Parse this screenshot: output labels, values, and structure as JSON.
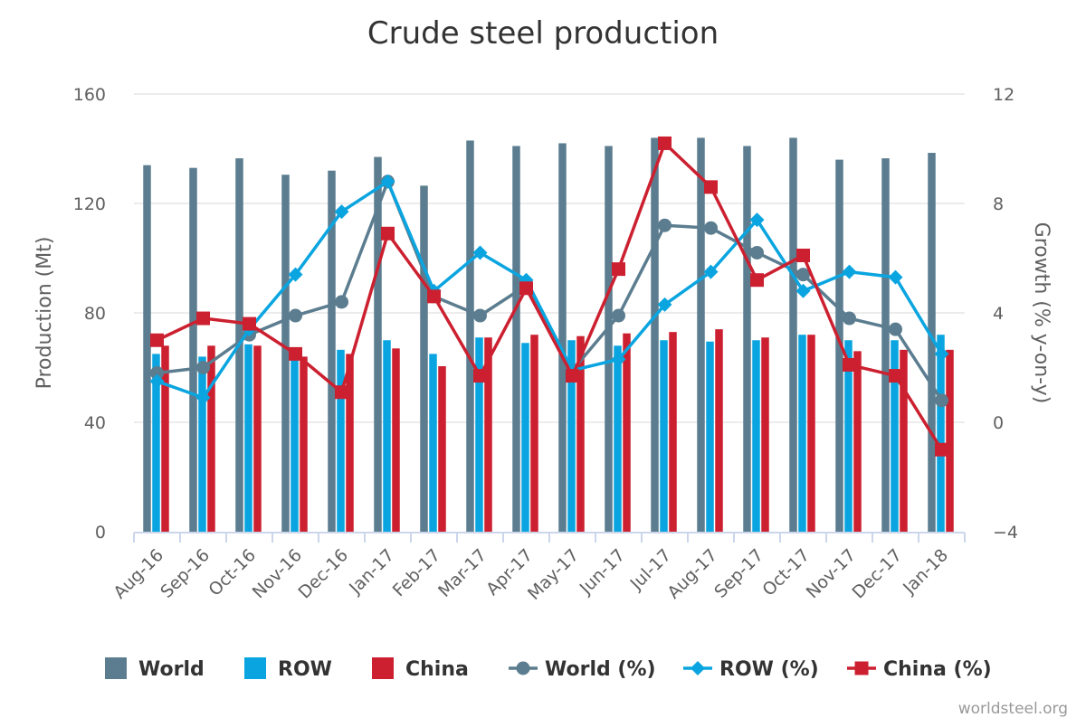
{
  "chart_data": {
    "type": "bar",
    "title": "Crude steel production",
    "ylabel": "Production (Mt)",
    "y2label": "Growth (% y-on-y)",
    "ylim": [
      0,
      160
    ],
    "y2lim": [
      -4,
      12
    ],
    "yticks": [
      "0",
      "40",
      "80",
      "120",
      "160"
    ],
    "y2ticks": [
      "−4",
      "0",
      "4",
      "8",
      "12"
    ],
    "grid": true,
    "legend_position": "bottom",
    "categories": [
      "Aug-16",
      "Sep-16",
      "Oct-16",
      "Nov-16",
      "Dec-16",
      "Jan-17",
      "Feb-17",
      "Mar-17",
      "Apr-17",
      "May-17",
      "Jun-17",
      "Jul-17",
      "Aug-17",
      "Sep-17",
      "Oct-17",
      "Nov-17",
      "Dec-17",
      "Jan-18"
    ],
    "bar_series": [
      {
        "name": "World",
        "color": "#5b7d8f",
        "values": [
          134,
          133,
          136.5,
          130.5,
          132,
          137,
          126.5,
          143,
          141,
          142,
          141,
          144,
          144,
          141,
          144,
          136,
          136.5,
          138.5
        ]
      },
      {
        "name": "ROW",
        "color": "#0aa5e0",
        "values": [
          65,
          64,
          68.5,
          65,
          66.5,
          70,
          65,
          71,
          69,
          70,
          68,
          70,
          69.5,
          70,
          72,
          70,
          70,
          72
        ]
      },
      {
        "name": "China",
        "color": "#cc2030",
        "values": [
          68,
          68,
          68,
          64,
          65,
          67,
          60.5,
          71,
          72,
          71.5,
          72.5,
          73,
          74,
          71,
          72,
          66,
          66.5,
          66.5
        ]
      }
    ],
    "line_series": [
      {
        "name": "World (%)",
        "color": "#5b7d8f",
        "marker": "circle",
        "values": [
          1.8,
          2.0,
          3.2,
          3.9,
          4.4,
          8.8,
          4.6,
          3.9,
          5.0,
          1.9,
          3.9,
          7.2,
          7.1,
          6.2,
          5.4,
          3.8,
          3.4,
          0.8
        ]
      },
      {
        "name": "ROW (%)",
        "color": "#0aa5e0",
        "marker": "diamond",
        "values": [
          1.5,
          0.9,
          3.4,
          5.4,
          7.7,
          8.8,
          4.8,
          6.2,
          5.2,
          1.9,
          2.3,
          4.3,
          5.5,
          7.4,
          4.8,
          5.5,
          5.3,
          2.5
        ]
      },
      {
        "name": "China (%)",
        "color": "#cc2030",
        "marker": "square",
        "values": [
          3.0,
          3.8,
          3.6,
          2.5,
          1.1,
          6.9,
          4.6,
          1.7,
          4.9,
          1.7,
          5.6,
          10.2,
          8.6,
          5.2,
          6.1,
          2.1,
          1.7,
          -1.0
        ]
      }
    ],
    "credit": "worldsteel.org"
  }
}
